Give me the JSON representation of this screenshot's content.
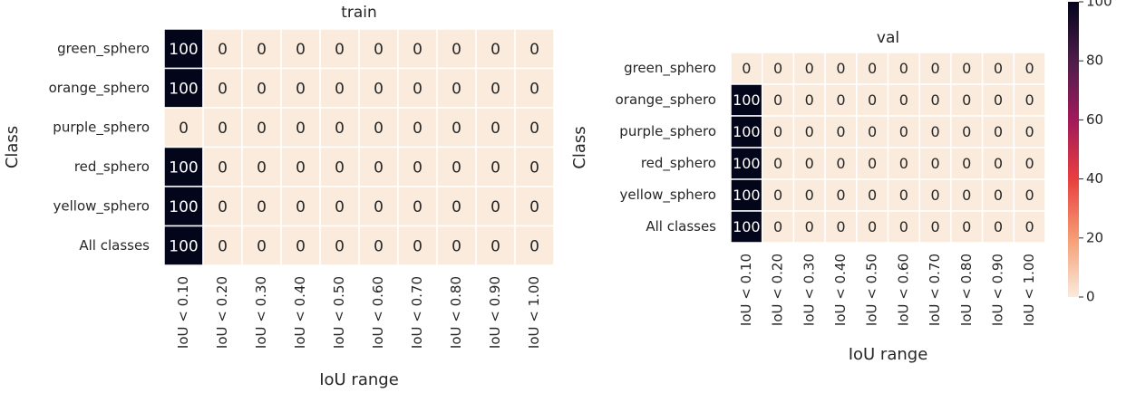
{
  "chart_data": [
    {
      "type": "heatmap",
      "title": "train",
      "xlabel": "IoU range",
      "ylabel": "Class",
      "x": [
        "IoU < 0.10",
        "IoU < 0.20",
        "IoU < 0.30",
        "IoU < 0.40",
        "IoU < 0.50",
        "IoU < 0.60",
        "IoU < 0.70",
        "IoU < 0.80",
        "IoU < 0.90",
        "IoU < 1.00"
      ],
      "y": [
        "green_sphero",
        "orange_sphero",
        "purple_sphero",
        "red_sphero",
        "yellow_sphero",
        "All classes"
      ],
      "values": [
        [
          100,
          0,
          0,
          0,
          0,
          0,
          0,
          0,
          0,
          0
        ],
        [
          100,
          0,
          0,
          0,
          0,
          0,
          0,
          0,
          0,
          0
        ],
        [
          0,
          0,
          0,
          0,
          0,
          0,
          0,
          0,
          0,
          0
        ],
        [
          100,
          0,
          0,
          0,
          0,
          0,
          0,
          0,
          0,
          0
        ],
        [
          100,
          0,
          0,
          0,
          0,
          0,
          0,
          0,
          0,
          0
        ],
        [
          100,
          0,
          0,
          0,
          0,
          0,
          0,
          0,
          0,
          0
        ]
      ],
      "zlim": [
        0,
        100
      ],
      "colorscale": [
        "#faebdd",
        "#f69c73",
        "#e83f3f",
        "#a11a5b",
        "#4c1d4b",
        "#03051a"
      ]
    },
    {
      "type": "heatmap",
      "title": "val",
      "xlabel": "IoU range",
      "ylabel": "Class",
      "x": [
        "IoU < 0.10",
        "IoU < 0.20",
        "IoU < 0.30",
        "IoU < 0.40",
        "IoU < 0.50",
        "IoU < 0.60",
        "IoU < 0.70",
        "IoU < 0.80",
        "IoU < 0.90",
        "IoU < 1.00"
      ],
      "y": [
        "green_sphero",
        "orange_sphero",
        "purple_sphero",
        "red_sphero",
        "yellow_sphero",
        "All classes"
      ],
      "values": [
        [
          0,
          0,
          0,
          0,
          0,
          0,
          0,
          0,
          0,
          0
        ],
        [
          100,
          0,
          0,
          0,
          0,
          0,
          0,
          0,
          0,
          0
        ],
        [
          100,
          0,
          0,
          0,
          0,
          0,
          0,
          0,
          0,
          0
        ],
        [
          100,
          0,
          0,
          0,
          0,
          0,
          0,
          0,
          0,
          0
        ],
        [
          100,
          0,
          0,
          0,
          0,
          0,
          0,
          0,
          0,
          0
        ],
        [
          100,
          0,
          0,
          0,
          0,
          0,
          0,
          0,
          0,
          0
        ]
      ],
      "zlim": [
        0,
        100
      ],
      "colorscale": [
        "#faebdd",
        "#f69c73",
        "#e83f3f",
        "#a11a5b",
        "#4c1d4b",
        "#03051a"
      ],
      "colorbar_ticks": [
        0,
        20,
        40,
        60,
        80,
        100
      ]
    }
  ]
}
